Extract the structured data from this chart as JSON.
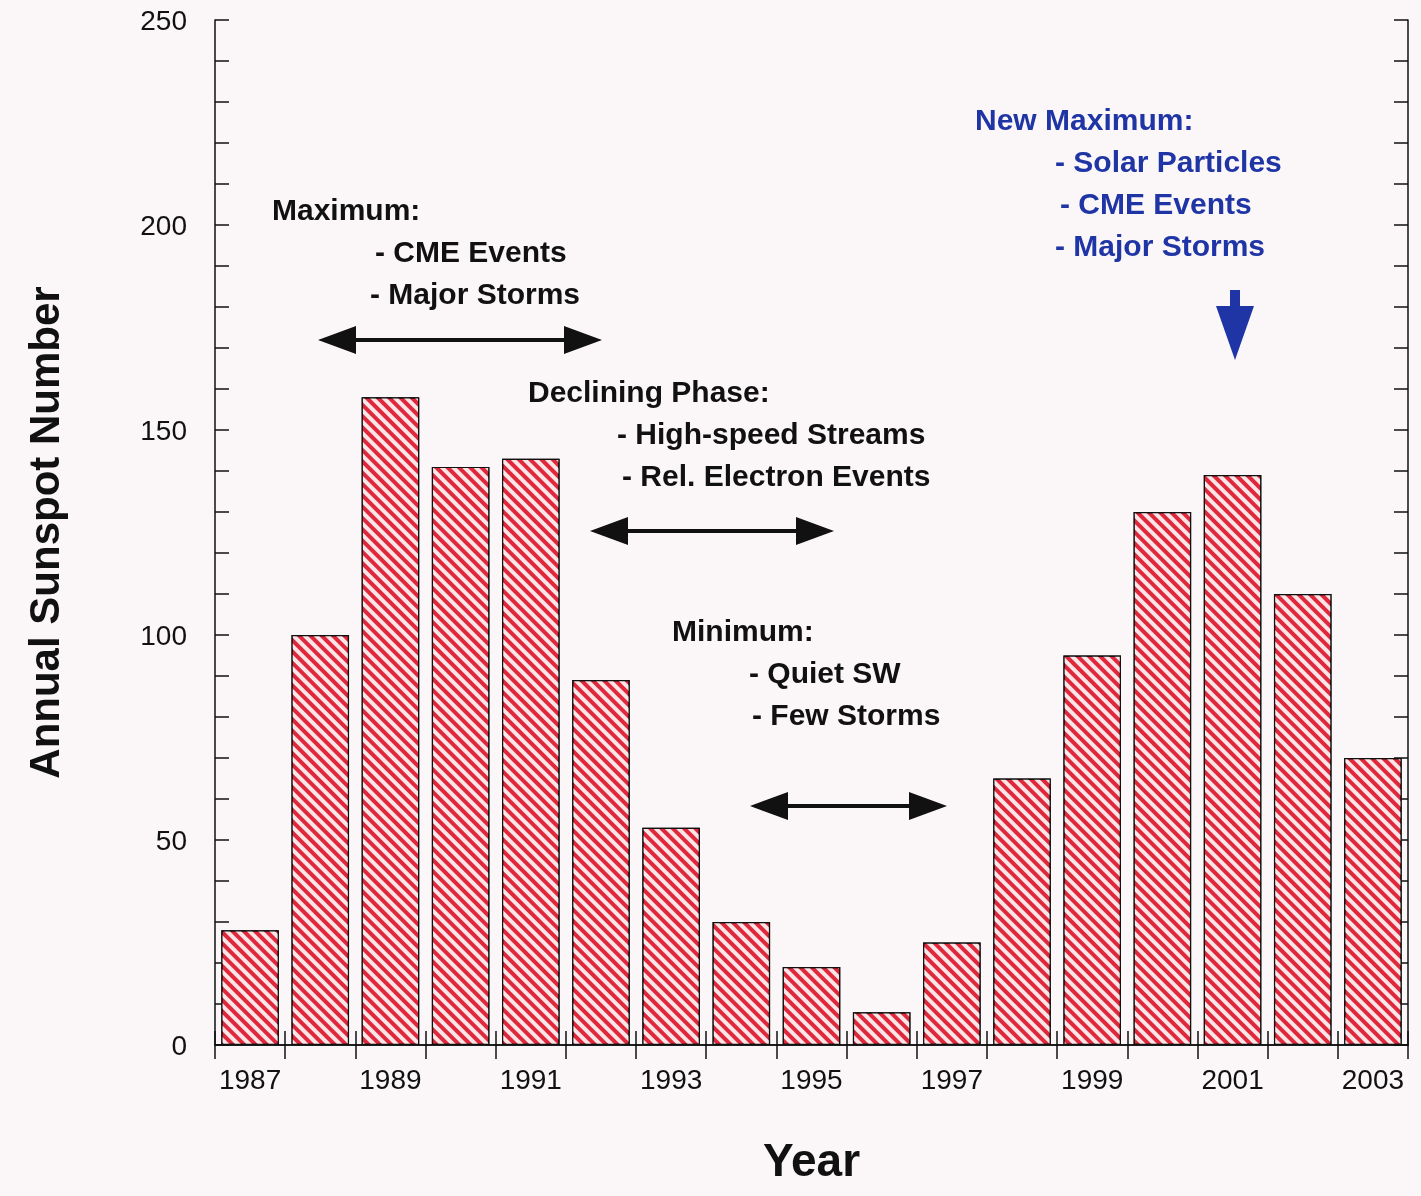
{
  "chart_data": {
    "type": "bar",
    "xlabel": "Year",
    "ylabel": "Annual Sunspot Number",
    "categories": [
      "1987",
      null,
      "1989",
      null,
      "1991",
      null,
      "1993",
      null,
      "1995",
      null,
      "1997",
      null,
      "1999",
      null,
      "2001",
      null,
      "2003"
    ],
    "values": [
      28,
      100,
      158,
      141,
      143,
      89,
      53,
      30,
      19,
      8,
      25,
      65,
      95,
      130,
      139,
      110,
      70
    ],
    "color": "#e0283c",
    "ylim": [
      0,
      250
    ],
    "yticks": [
      0,
      {
        "value": 10,
        "label": null
      },
      {
        "value": 20,
        "label": null
      },
      {
        "value": 30,
        "label": null
      },
      {
        "value": 40,
        "label": null
      },
      50,
      {
        "value": 60,
        "label": null
      },
      {
        "value": 70,
        "label": null
      },
      {
        "value": 80,
        "label": null
      },
      {
        "value": 90,
        "label": null
      },
      100,
      {
        "value": 110,
        "label": null
      },
      {
        "value": 120,
        "label": null
      },
      {
        "value": 130,
        "label": null
      },
      {
        "value": 140,
        "label": null
      },
      150,
      {
        "value": 160,
        "label": null
      },
      {
        "value": 170,
        "label": null
      },
      {
        "value": 180,
        "label": null
      },
      {
        "value": 190,
        "label": null
      },
      200,
      {
        "value": 210,
        "label": null
      },
      {
        "value": 220,
        "label": null
      },
      {
        "value": 230,
        "label": null
      },
      {
        "value": 240,
        "label": null
      },
      250
    ],
    "grid": false,
    "annotations": [
      "Maximum:\n- CME Events\n- Major Storms",
      "Declining Phase:\n- High-speed Streams\n- Rel. Electron Events",
      "Minimum:\n- Quiet SW\n- Few Storms",
      "New Maximum:\n- Solar Particles\n- CME Events\n- Major Storms"
    ]
  }
}
